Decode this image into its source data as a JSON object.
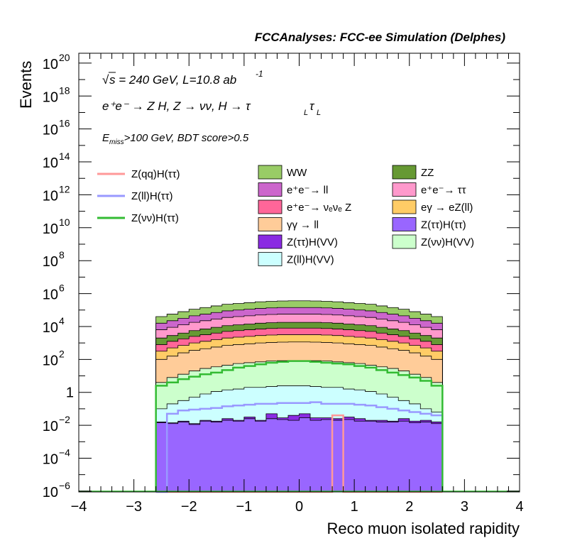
{
  "chart_data": {
    "type": "histogram",
    "title": "FCCAnalyses: FCC-ee Simulation (Delphes)",
    "ylabel": "Events",
    "xlabel": "Reco muon isolated rapidity",
    "annotations": {
      "sqrt_s": "s",
      "energy_lumi": " = 240 GeV, L=10.8 ab",
      "lumi_exp": "-1",
      "process": "e⁺e⁻ → Z H, Z → νν, H → τ",
      "sub_L": "L",
      "tau": "τ",
      "cut_E": "E",
      "cut_sub": "miss",
      "cut_rest": ">100 GeV, BDT score>0.5"
    },
    "x_range": [
      -4,
      4
    ],
    "y_range_log10": [
      -6.05,
      20.6
    ],
    "x_ticks": [
      "−4",
      "−3",
      "−2",
      "−1",
      "0",
      "1",
      "2",
      "3",
      "4"
    ],
    "y_ticks": [
      {
        "base": "10",
        "exp": "−6",
        "log": -6
      },
      {
        "base": "10",
        "exp": "−4",
        "log": -4
      },
      {
        "base": "10",
        "exp": "−2",
        "log": -2
      },
      {
        "base": "1",
        "exp": "",
        "log": 0
      },
      {
        "base": "10",
        "exp": "2",
        "log": 2
      },
      {
        "base": "10",
        "exp": "4",
        "log": 4
      },
      {
        "base": "10",
        "exp": "6",
        "log": 6
      },
      {
        "base": "10",
        "exp": "8",
        "log": 8
      },
      {
        "base": "10",
        "exp": "10",
        "log": 10
      },
      {
        "base": "10",
        "exp": "12",
        "log": 12
      },
      {
        "base": "10",
        "exp": "14",
        "log": 14
      },
      {
        "base": "10",
        "exp": "16",
        "log": 16
      },
      {
        "base": "10",
        "exp": "18",
        "log": 18
      },
      {
        "base": "10",
        "exp": "20",
        "log": 20
      }
    ],
    "bin_range": [
      -2.6,
      2.6
    ],
    "bin_count": 26,
    "stack_bottom_log10": -6.05,
    "stack_top_log10": [
      {
        "name": "Z(ττ)H(ττ)",
        "color": "#9966ff",
        "values": [
          -1.85,
          -1.9,
          -1.8,
          -1.95,
          -1.75,
          -1.8,
          -1.7,
          -1.75,
          -1.6,
          -1.75,
          -1.6,
          -1.65,
          -1.7,
          -1.55,
          -1.7,
          -1.65,
          -1.7,
          -1.65,
          -1.75,
          -1.75,
          -1.8,
          -1.8,
          -1.75,
          -1.85,
          -1.8,
          -1.9
        ]
      },
      {
        "name": "Z(ττ)H(VV)",
        "color": "#8a2be2",
        "values": [
          -1.8,
          -1.85,
          -1.75,
          -1.9,
          -1.7,
          -1.75,
          -1.6,
          -1.7,
          -1.5,
          -1.7,
          -1.3,
          -1.55,
          -1.4,
          -1.3,
          -1.55,
          -1.55,
          -1.6,
          -1.5,
          -1.6,
          -1.7,
          -1.7,
          -1.75,
          -1.6,
          -1.75,
          -1.7,
          -1.8
        ]
      },
      {
        "name": "Z(ll)H(VV)",
        "color": "#ccffff",
        "values": [
          -1.0,
          -0.7,
          -0.5,
          -0.3,
          -0.1,
          0.05,
          0.15,
          0.2,
          0.3,
          0.3,
          0.35,
          0.4,
          0.4,
          0.4,
          0.35,
          0.3,
          0.3,
          0.2,
          0.15,
          0.05,
          -0.1,
          -0.3,
          -0.5,
          -0.7,
          -1.0,
          -1.2
        ]
      },
      {
        "name": "Z(νν)H(VV)",
        "color": "#ccffcc",
        "values": [
          0.6,
          0.9,
          1.1,
          1.3,
          1.45,
          1.55,
          1.65,
          1.75,
          1.8,
          1.85,
          1.9,
          1.92,
          1.93,
          1.93,
          1.92,
          1.9,
          1.85,
          1.8,
          1.75,
          1.65,
          1.55,
          1.45,
          1.3,
          1.1,
          0.9,
          0.6
        ]
      },
      {
        "name": "γγ → ll",
        "color": "#ffcc99",
        "values": [
          2.0,
          2.2,
          2.4,
          2.55,
          2.65,
          2.75,
          2.85,
          2.9,
          2.95,
          3.0,
          3.03,
          3.05,
          3.06,
          3.06,
          3.05,
          3.03,
          3.0,
          2.95,
          2.9,
          2.85,
          2.75,
          2.65,
          2.55,
          2.4,
          2.2,
          2.0
        ]
      },
      {
        "name": "eγ → eZ(ll)",
        "color": "#ffcc66",
        "values": [
          2.5,
          2.7,
          2.85,
          3.0,
          3.1,
          3.2,
          3.3,
          3.35,
          3.4,
          3.45,
          3.48,
          3.5,
          3.5,
          3.5,
          3.5,
          3.48,
          3.45,
          3.4,
          3.35,
          3.3,
          3.2,
          3.1,
          3.0,
          2.85,
          2.7,
          2.5
        ]
      },
      {
        "name": "e⁺e⁻→ νₑνₑ Z",
        "color": "#ff6699",
        "values": [
          2.9,
          3.1,
          3.25,
          3.4,
          3.5,
          3.6,
          3.7,
          3.75,
          3.8,
          3.85,
          3.88,
          3.9,
          3.9,
          3.9,
          3.9,
          3.88,
          3.85,
          3.8,
          3.75,
          3.7,
          3.6,
          3.5,
          3.4,
          3.25,
          3.1,
          2.9
        ]
      },
      {
        "name": "ZZ",
        "color": "#669933",
        "values": [
          3.3,
          3.45,
          3.6,
          3.75,
          3.85,
          3.95,
          4.05,
          4.1,
          4.15,
          4.2,
          4.23,
          4.25,
          4.25,
          4.25,
          4.25,
          4.23,
          4.2,
          4.15,
          4.1,
          4.05,
          3.95,
          3.85,
          3.75,
          3.6,
          3.45,
          3.3
        ]
      },
      {
        "name": "e⁺e⁻→ ττ",
        "color": "#ff99cc",
        "values": [
          3.8,
          3.95,
          4.1,
          4.25,
          4.35,
          4.45,
          4.55,
          4.6,
          4.65,
          4.7,
          4.73,
          4.75,
          4.75,
          4.75,
          4.75,
          4.73,
          4.7,
          4.65,
          4.6,
          4.55,
          4.45,
          4.35,
          4.25,
          4.1,
          3.95,
          3.8
        ]
      },
      {
        "name": "e⁺e⁻→ ll",
        "color": "#cc66cc",
        "values": [
          4.2,
          4.35,
          4.5,
          4.65,
          4.75,
          4.85,
          4.95,
          5.0,
          5.05,
          5.1,
          5.13,
          5.15,
          5.15,
          5.15,
          5.15,
          5.13,
          5.1,
          5.05,
          5.0,
          4.95,
          4.85,
          4.75,
          4.65,
          4.5,
          4.35,
          4.2
        ]
      },
      {
        "name": "WW",
        "color": "#99cc66",
        "values": [
          4.6,
          4.75,
          4.9,
          5.05,
          5.15,
          5.25,
          5.35,
          5.4,
          5.45,
          5.5,
          5.53,
          5.55,
          5.56,
          5.56,
          5.55,
          5.53,
          5.5,
          5.45,
          5.4,
          5.35,
          5.25,
          5.15,
          5.05,
          4.9,
          4.75,
          4.6
        ]
      }
    ],
    "lines": [
      {
        "name": "Z(qq)H(ττ)",
        "color": "#ff9999",
        "values_log10": [
          -6.05,
          -6.05,
          -6.05,
          -6.05,
          -6.05,
          -6.05,
          -6.05,
          -6.05,
          -6.05,
          -6.05,
          -6.05,
          -6.05,
          -6.05,
          -6.05,
          -6.05,
          -6.05,
          -1.4,
          -6.05,
          -6.05,
          -6.05,
          -6.05,
          -6.05,
          -6.05,
          -6.05,
          -6.05,
          -6.05
        ]
      },
      {
        "name": "Z(ll)H(ττ)",
        "color": "#9999ff",
        "values_log10": [
          -6.05,
          -1.3,
          -1.1,
          -1.05,
          -1.0,
          -0.95,
          -0.85,
          -0.8,
          -0.75,
          -0.7,
          -0.7,
          -0.65,
          -0.65,
          -0.65,
          -0.6,
          -0.7,
          -0.7,
          -0.7,
          -0.75,
          -0.8,
          -0.9,
          -1.0,
          -1.1,
          -1.2,
          -1.3,
          -1.4
        ]
      },
      {
        "name": "Z(νν)H(ττ)",
        "color": "#33bb33",
        "values_log10": [
          0.4,
          0.6,
          0.8,
          0.95,
          1.1,
          1.2,
          1.35,
          1.5,
          1.6,
          1.7,
          1.8,
          1.85,
          1.9,
          1.9,
          1.85,
          1.8,
          1.75,
          1.7,
          1.6,
          1.5,
          1.35,
          1.2,
          1.05,
          0.9,
          0.7,
          0.4
        ]
      }
    ],
    "legend": {
      "lines": [
        "Z(qq)H(ττ)",
        "Z(ll)H(ττ)",
        "Z(νν)H(ττ)"
      ],
      "stack": [
        [
          "WW",
          "ZZ"
        ],
        [
          "e⁺e⁻→ ll",
          "e⁺e⁻→ ττ"
        ],
        [
          "e⁺e⁻→ νₑνₑ Z",
          "eγ → eZ(ll)"
        ],
        [
          "γγ → ll",
          "Z(ττ)H(ττ)"
        ],
        [
          "Z(ττ)H(VV)",
          "Z(νν)H(VV)"
        ],
        [
          "Z(ll)H(VV)",
          ""
        ]
      ]
    },
    "grid": false,
    "y_scale": "log"
  }
}
